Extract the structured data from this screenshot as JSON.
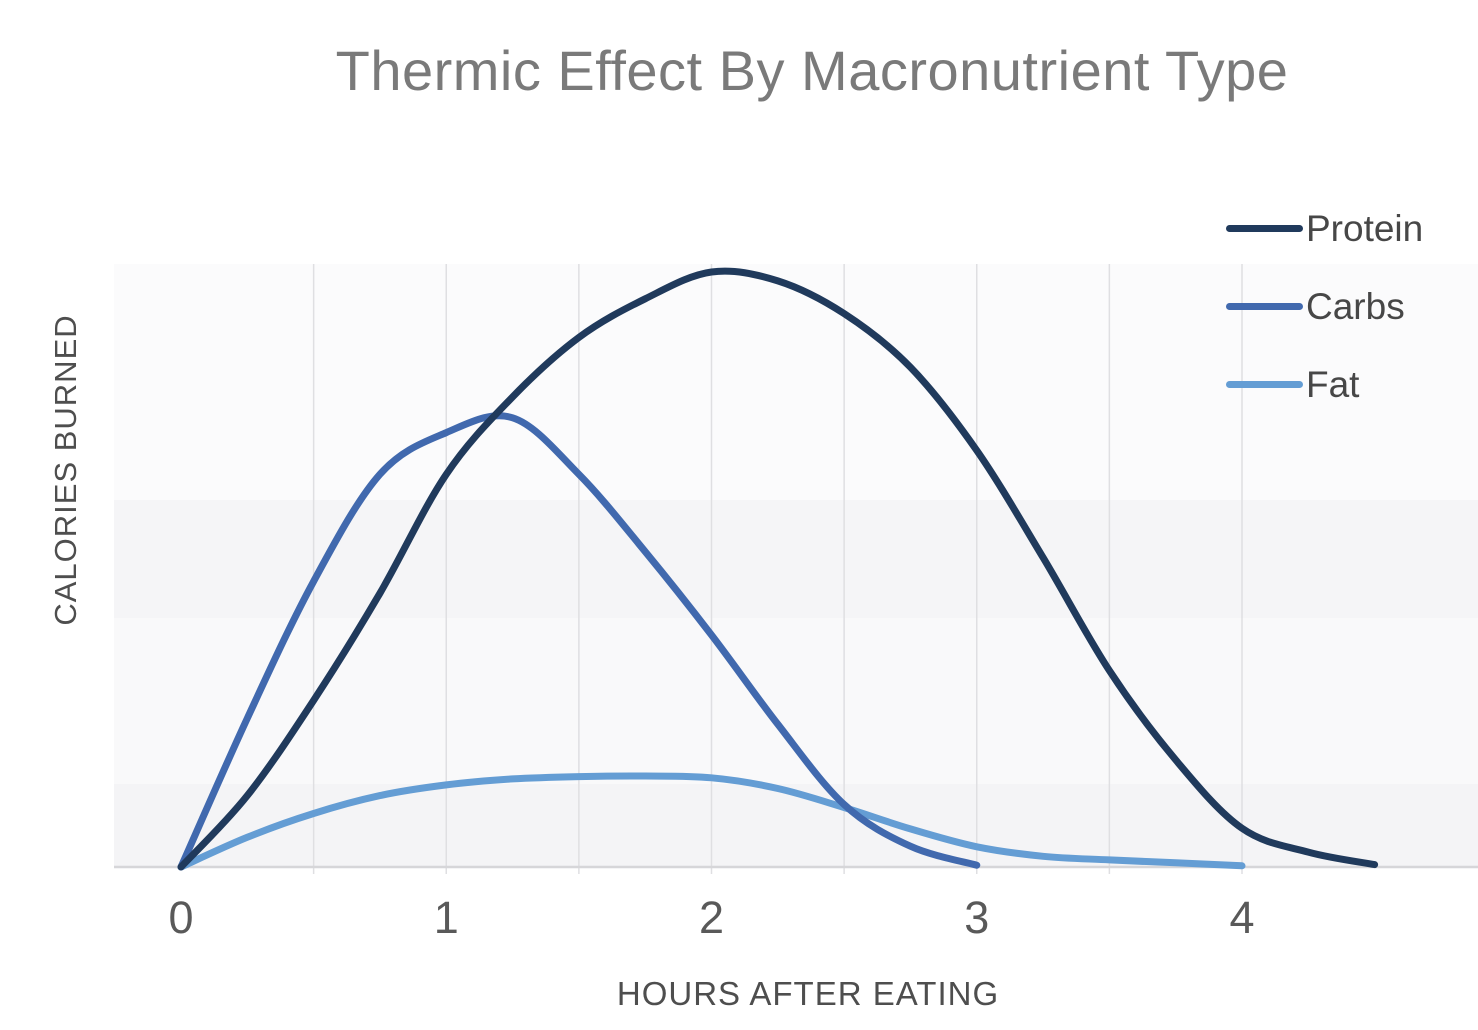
{
  "chart_data": {
    "type": "line",
    "title": "Thermic Effect By Macronutrient Type",
    "xlabel": "HOURS AFTER EATING",
    "ylabel": "CALORIES BURNED",
    "x_ticks": [
      0,
      1,
      2,
      3,
      4
    ],
    "xlim": [
      0,
      4.9
    ],
    "ylim": [
      0,
      105
    ],
    "y_tick_labels_visible": false,
    "grid": "vertical gridlines every 0.5 h, light gray",
    "grid_x": [
      0.5,
      1,
      1.5,
      2,
      2.5,
      3,
      3.5,
      4
    ],
    "legend_position": "top-right",
    "x": [
      0,
      0.25,
      0.5,
      0.75,
      1,
      1.25,
      1.5,
      1.75,
      2,
      2.25,
      2.5,
      2.75,
      3,
      3.25,
      3.5,
      3.75,
      4,
      4.25,
      4.5
    ],
    "series": [
      {
        "name": "Protein",
        "color": "#203a5c",
        "values": [
          0,
          12,
          28,
          46,
          66,
          79,
          89,
          95.5,
          100,
          98.5,
          93,
          84,
          70,
          52,
          33,
          18,
          6.5,
          2.5,
          0.4
        ]
      },
      {
        "name": "Carbs",
        "color": "#4169ae",
        "values": [
          0,
          25,
          48,
          66,
          73,
          75.5,
          66,
          53,
          39,
          24,
          10.5,
          3.5,
          0.3,
          null,
          null,
          null,
          null,
          null,
          null
        ]
      },
      {
        "name": "Fat",
        "color": "#649dd4",
        "values": [
          0,
          5,
          9,
          12,
          13.8,
          14.8,
          15.2,
          15.3,
          15,
          13.2,
          10,
          6.4,
          3.4,
          1.8,
          1.2,
          0.7,
          0.2,
          null,
          null
        ]
      }
    ],
    "notes": "Protein peaks highest at ~2 h, Carbs peaks at ~1.1 h at ~75% of protein peak, Fat stays low and flat peaking ~1.5-1.8 h; no numeric y-axis scale shown"
  },
  "colors": {
    "title_text": "#7a7a7a",
    "axis_text": "#4e4e4e",
    "tick_text": "#595959",
    "legend_text": "#474747",
    "axis_line": "#d6d6d9",
    "gridline": "#dfdfe2",
    "plot_bands": [
      "#fbfbfc",
      "#f5f5f7",
      "#f9f9fa",
      "#f4f4f6"
    ]
  }
}
